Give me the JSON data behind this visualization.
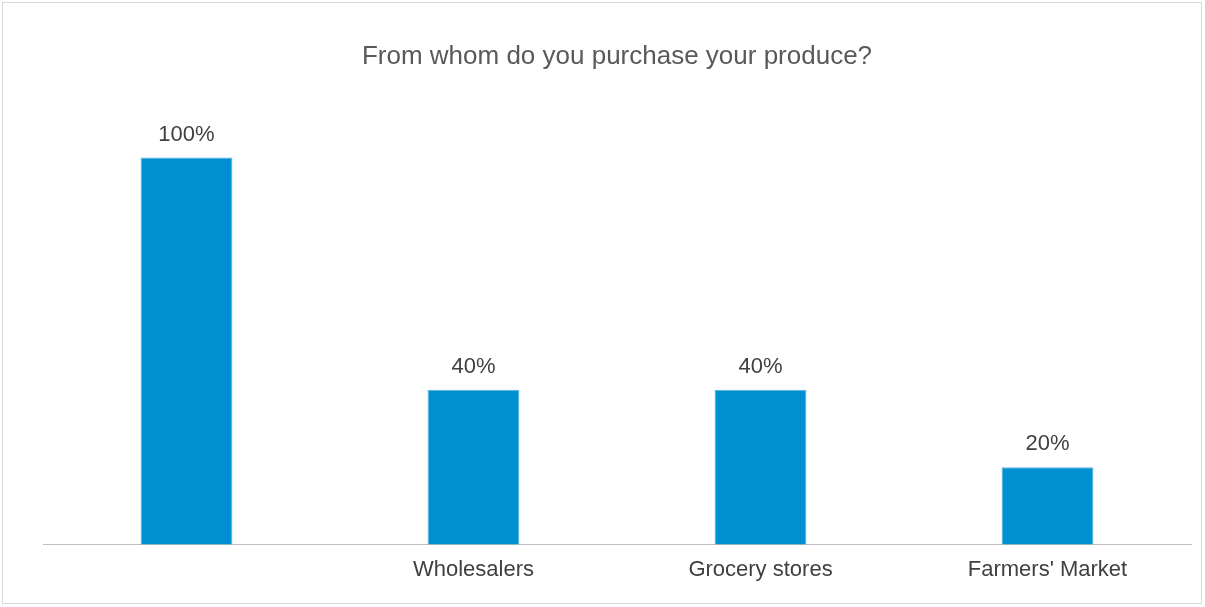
{
  "chart_data": {
    "type": "bar",
    "title": "From whom do you purchase your produce?",
    "categories": [
      null,
      "Wholesalers",
      "Grocery stores",
      "Farmers' Market"
    ],
    "values": [
      100,
      40,
      40,
      20
    ],
    "value_labels": [
      "100%",
      "40%",
      "40%",
      "20%"
    ],
    "color": "#008fd0",
    "grid": false,
    "legend": false
  }
}
